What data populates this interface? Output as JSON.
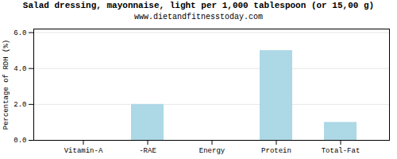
{
  "chart_data": {
    "type": "bar",
    "title": "Salad dressing, mayonnaise, light per 1,000 tablespoon (or 15,00 g)",
    "subtitle": "www.dietandfitnesstoday.com",
    "categories": [
      "Vitamin-A",
      "-RAE",
      "Energy",
      "Protein",
      "Total-Fat"
    ],
    "values": [
      0,
      2,
      0,
      5,
      1
    ],
    "color": "#add8e6",
    "ylabel": "Percentage of RDH (%)",
    "ylim": [
      0,
      6.2
    ],
    "yticks": [
      0,
      2,
      4,
      6
    ],
    "grid": true
  }
}
